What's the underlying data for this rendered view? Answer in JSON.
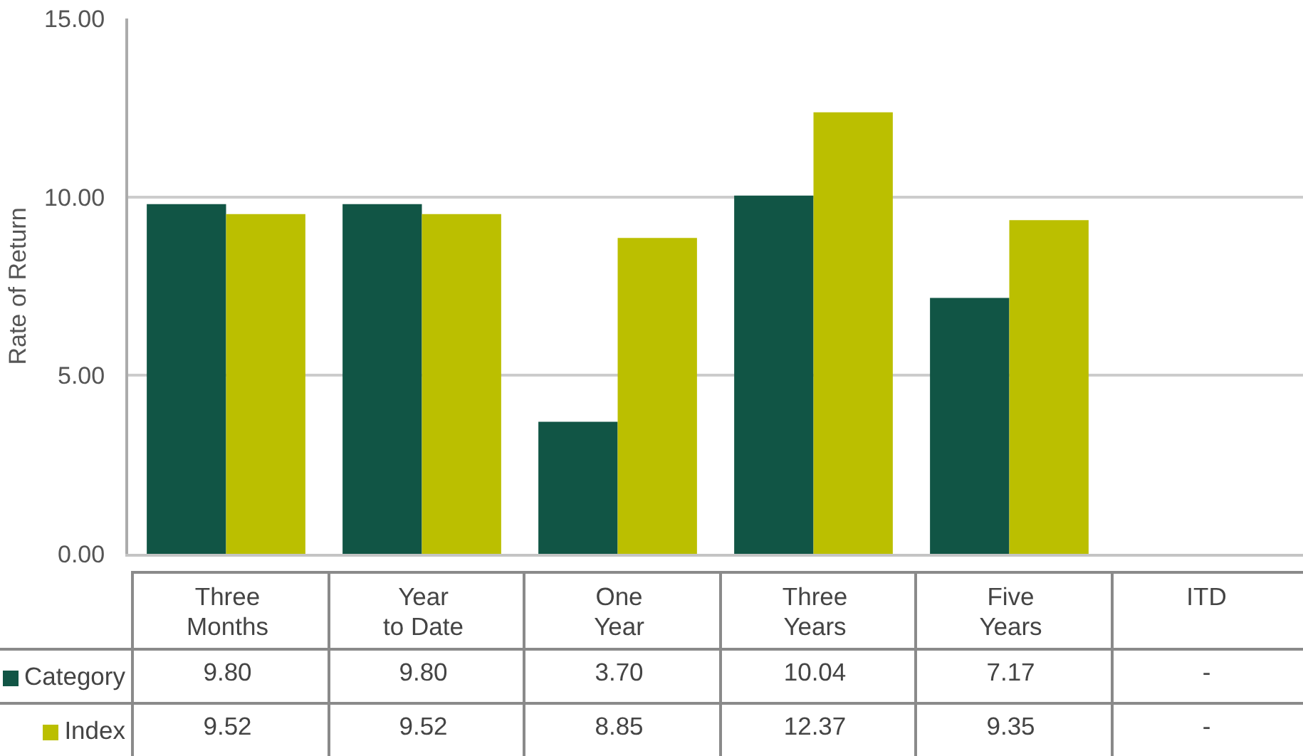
{
  "chart_data": {
    "type": "bar",
    "ylabel": "Rate of Return",
    "categories": [
      "Three Months",
      "Year to Date",
      "One Year",
      "Three Years",
      "Five Years",
      "ITD"
    ],
    "series": [
      {
        "name": "Category",
        "color": "#115545",
        "values": [
          9.8,
          9.8,
          3.7,
          10.04,
          7.17,
          null
        ],
        "value_labels": [
          "9.80",
          "9.80",
          "3.70",
          "10.04",
          "7.17",
          "-"
        ]
      },
      {
        "name": "Index",
        "color": "#bbbf00",
        "values": [
          9.52,
          9.52,
          8.85,
          12.37,
          9.35,
          null
        ],
        "value_labels": [
          "9.52",
          "9.52",
          "8.85",
          "12.37",
          "9.35",
          "-"
        ]
      }
    ],
    "ylim": [
      0,
      15
    ],
    "yticks": [
      {
        "value": 0,
        "label": "0.00"
      },
      {
        "value": 5,
        "label": "5.00"
      },
      {
        "value": 10,
        "label": "10.00"
      },
      {
        "value": 15,
        "label": "15.00"
      }
    ],
    "grid": "y",
    "legend": "bottom left"
  }
}
